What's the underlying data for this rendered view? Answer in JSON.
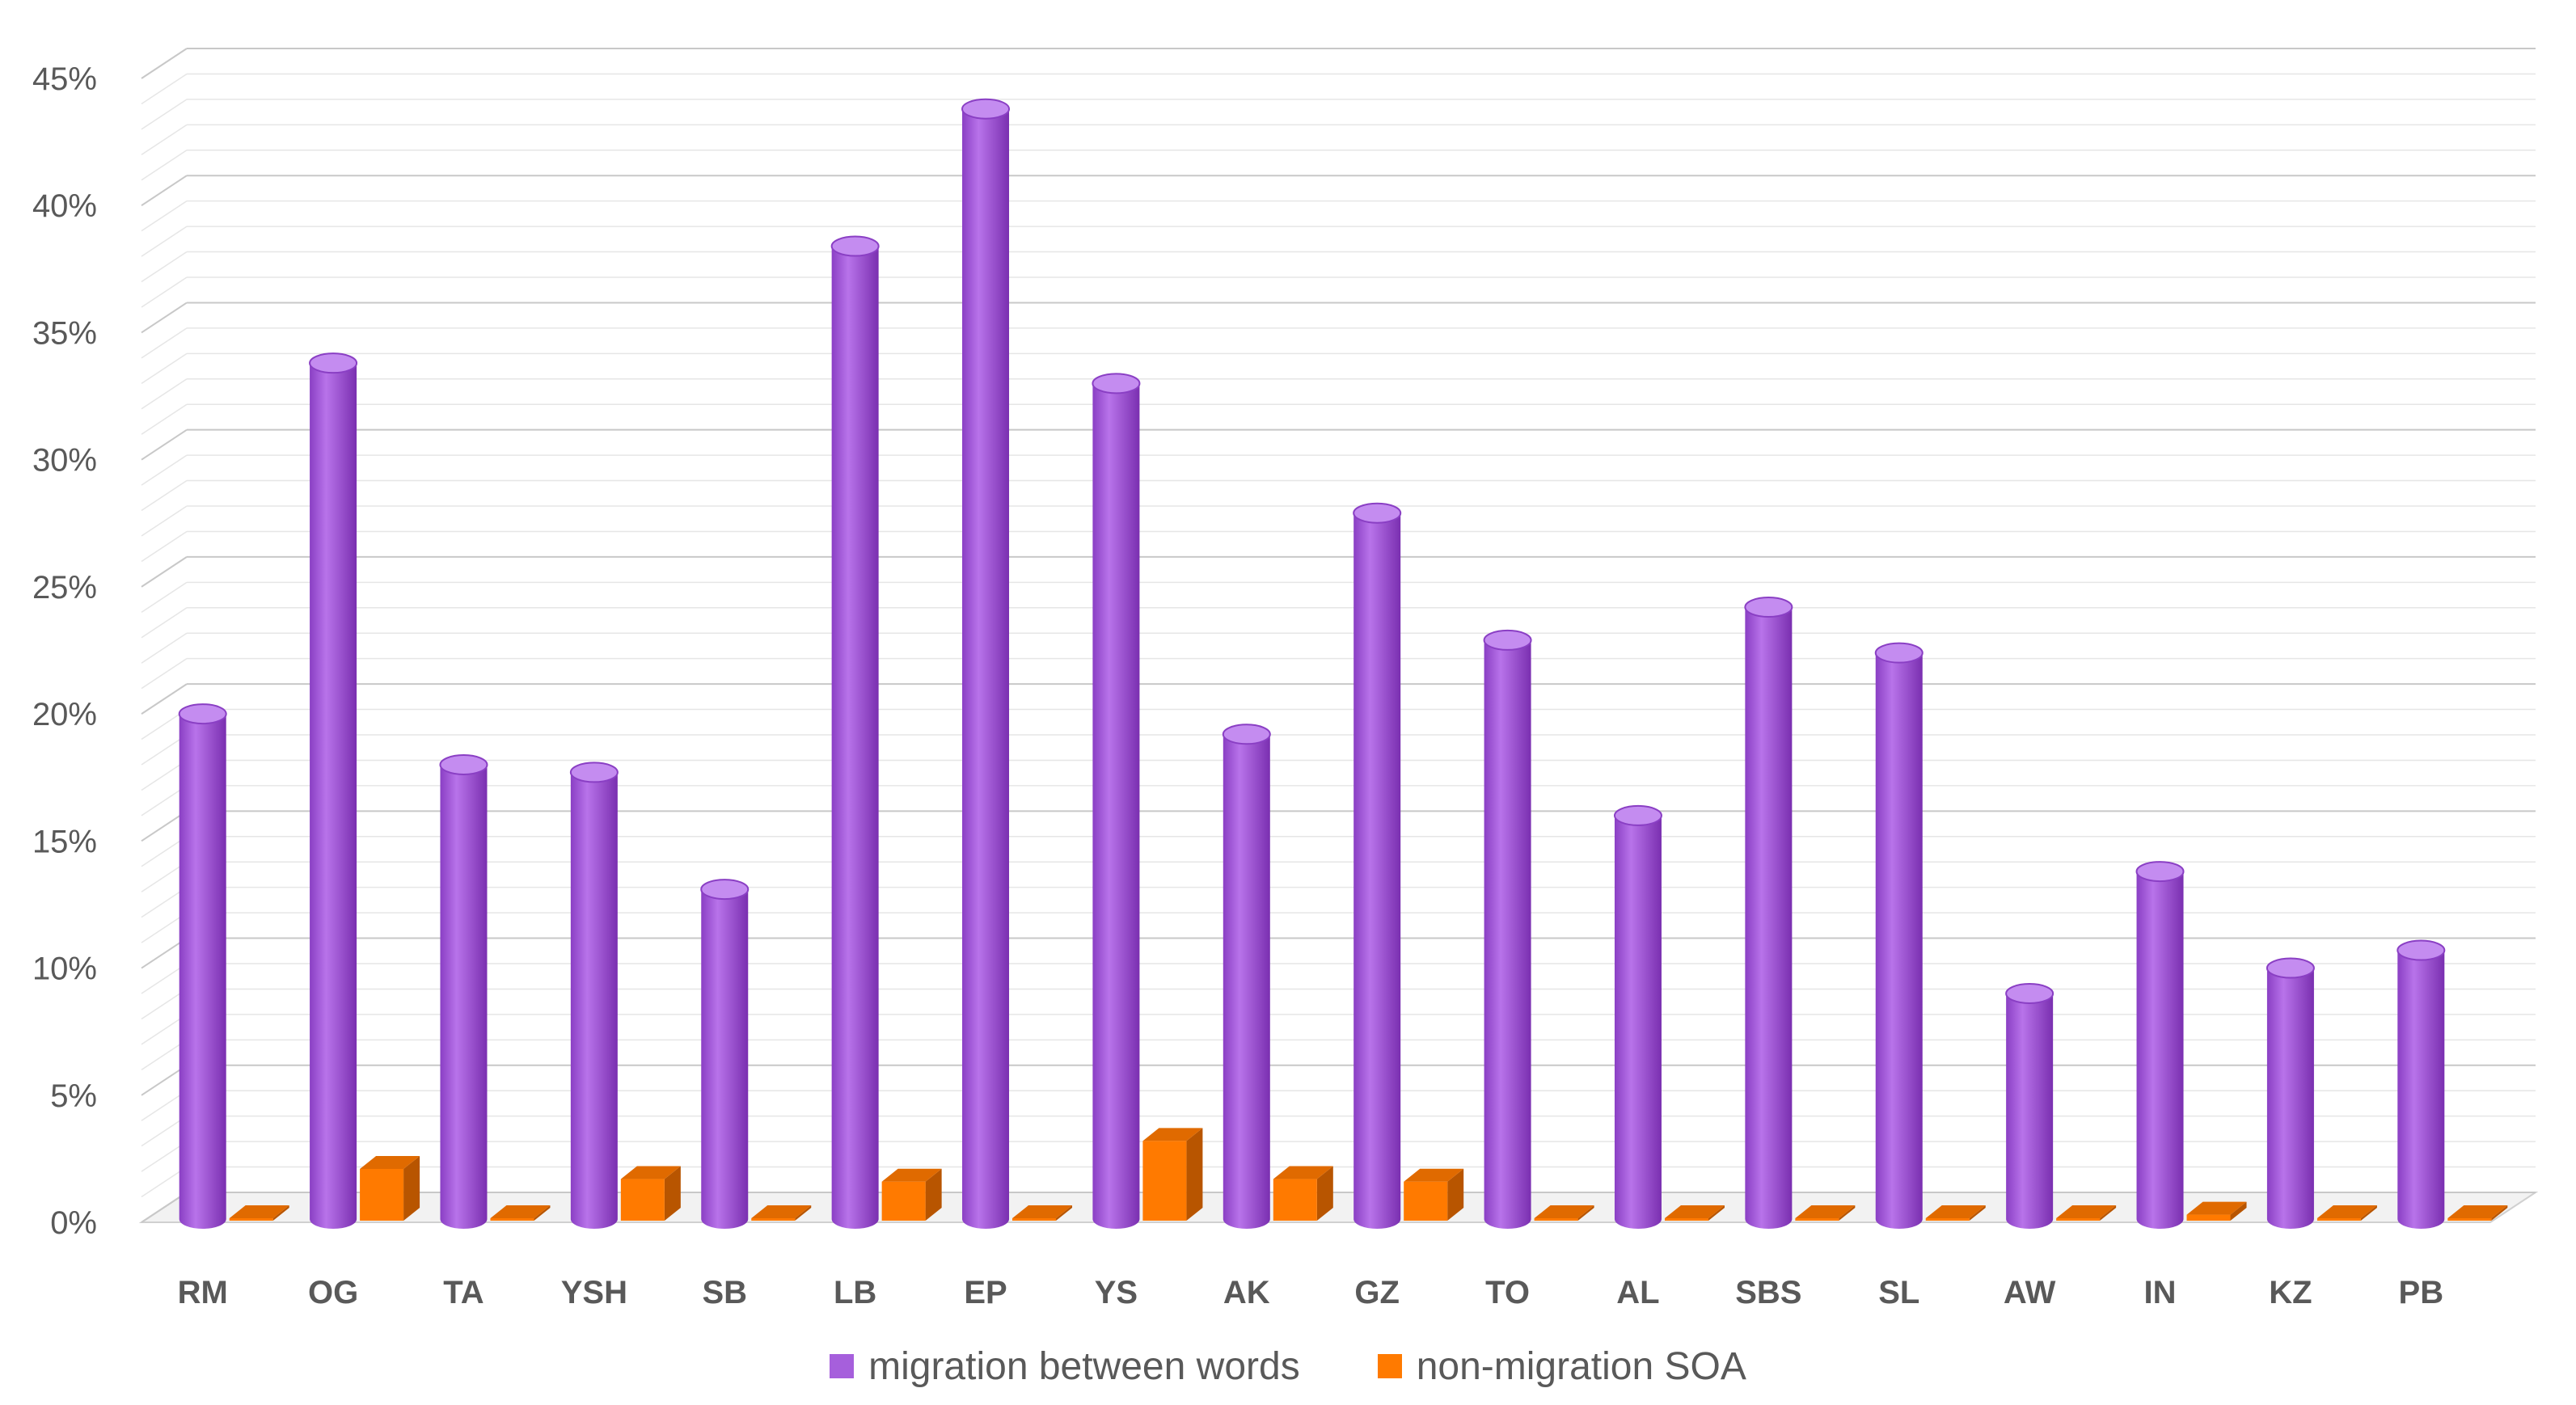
{
  "chart_data": {
    "type": "bar",
    "title": "",
    "xlabel": "",
    "ylabel": "",
    "ylim": [
      0,
      45
    ],
    "y_ticks": [
      "0%",
      "5%",
      "10%",
      "15%",
      "20%",
      "25%",
      "30%",
      "35%",
      "40%",
      "45%"
    ],
    "grid": true,
    "legend_position": "bottom",
    "categories": [
      "RM",
      "OG",
      "TA",
      "YSH",
      "SB",
      "LB",
      "EP",
      "YS",
      "AK",
      "GZ",
      "TO",
      "AL",
      "SBS",
      "SL",
      "AW",
      "IN",
      "KZ",
      "PB"
    ],
    "series": [
      {
        "name": "migration between words",
        "color": "#a65fdc",
        "values": [
          20.0,
          33.8,
          18.0,
          17.7,
          13.1,
          38.4,
          43.8,
          33.0,
          19.2,
          27.9,
          22.9,
          16.0,
          24.2,
          22.4,
          9.0,
          13.8,
          10.0,
          10.7
        ]
      },
      {
        "name": "non-migration SOA",
        "color": "#ff7a00",
        "values": [
          0,
          2.1,
          0,
          1.7,
          0,
          1.6,
          0,
          3.2,
          1.7,
          1.6,
          0,
          0,
          0,
          0,
          0,
          0.3,
          0,
          0
        ]
      }
    ]
  }
}
